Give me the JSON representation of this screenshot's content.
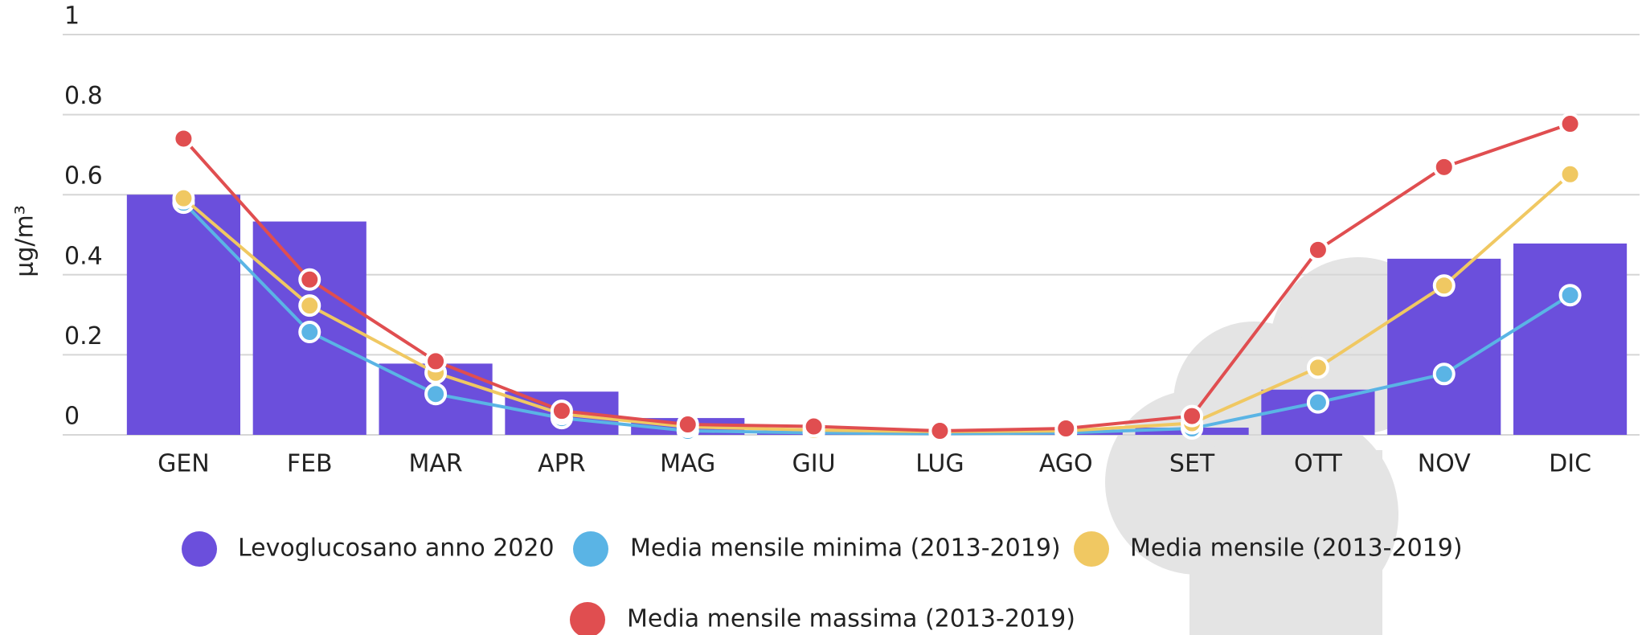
{
  "chart_data": {
    "type": "bar-line",
    "y_label": "µg/m³",
    "categories": [
      "GEN",
      "FEB",
      "MAR",
      "APR",
      "MAG",
      "GIU",
      "LUG",
      "AGO",
      "SET",
      "OTT",
      "NOV",
      "DIC"
    ],
    "series": [
      {
        "name": "Levoglucosano anno 2020",
        "type": "bar",
        "color": "#6b4fdc",
        "values": [
          0.6,
          0.533,
          0.178,
          0.108,
          0.042,
          0.005,
          0.003,
          0.01,
          0.018,
          0.113,
          0.44,
          0.478
        ]
      },
      {
        "name": "Media mensile minima (2013-2019)",
        "type": "line",
        "color": "#5ab4e5",
        "values": [
          0.58,
          0.257,
          0.102,
          0.042,
          0.01,
          0.005,
          0.003,
          0.005,
          0.016,
          0.081,
          0.152,
          0.349
        ]
      },
      {
        "name": "Media mensile (2013-2019)",
        "type": "line",
        "color": "#f0c862",
        "values": [
          0.591,
          0.323,
          0.155,
          0.052,
          0.02,
          0.012,
          0.008,
          0.01,
          0.029,
          0.168,
          0.373,
          0.651
        ]
      },
      {
        "name": "Media mensile massima (2013-2019)",
        "type": "line",
        "color": "#e04e50",
        "values": [
          0.74,
          0.388,
          0.184,
          0.06,
          0.026,
          0.021,
          0.01,
          0.016,
          0.047,
          0.462,
          0.669,
          0.777
        ]
      }
    ],
    "ylim": [
      0,
      1
    ],
    "yticks": [
      0,
      0.2,
      0.4,
      0.6,
      0.8,
      1
    ],
    "grid": true
  }
}
